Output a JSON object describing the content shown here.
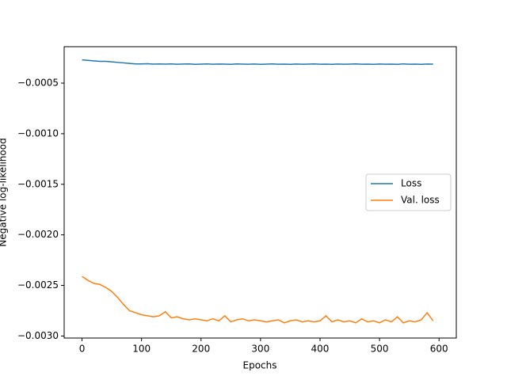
{
  "chart_data": {
    "type": "line",
    "xlabel": "Epochs",
    "ylabel": "Negative log-likelihood",
    "x": [
      0,
      10,
      20,
      30,
      40,
      50,
      60,
      70,
      80,
      90,
      100,
      110,
      120,
      130,
      140,
      150,
      160,
      170,
      180,
      190,
      200,
      210,
      220,
      230,
      240,
      250,
      260,
      270,
      280,
      290,
      300,
      310,
      320,
      330,
      340,
      350,
      360,
      370,
      380,
      390,
      400,
      410,
      420,
      430,
      440,
      450,
      460,
      470,
      480,
      490,
      500,
      510,
      520,
      530,
      540,
      550,
      560,
      570,
      580,
      590
    ],
    "series": [
      {
        "name": "Loss",
        "color": "#1f77b4",
        "values": [
          -0.00027,
          -0.000275,
          -0.00028,
          -0.000285,
          -0.000285,
          -0.00029,
          -0.000295,
          -0.0003,
          -0.000305,
          -0.00031,
          -0.00031,
          -0.000308,
          -0.000312,
          -0.00031,
          -0.000312,
          -0.00031,
          -0.000313,
          -0.000311,
          -0.00031,
          -0.000314,
          -0.000312,
          -0.00031,
          -0.000313,
          -0.000311,
          -0.000312,
          -0.000314,
          -0.00031,
          -0.000312,
          -0.000313,
          -0.000311,
          -0.000314,
          -0.000312,
          -0.00031,
          -0.000313,
          -0.000312,
          -0.000314,
          -0.000311,
          -0.000313,
          -0.000312,
          -0.00031,
          -0.000313,
          -0.000312,
          -0.000314,
          -0.000311,
          -0.000313,
          -0.000312,
          -0.00031,
          -0.000313,
          -0.000312,
          -0.000314,
          -0.000311,
          -0.000313,
          -0.000312,
          -0.000314,
          -0.00031,
          -0.000313,
          -0.000312,
          -0.000314,
          -0.000311,
          -0.000312
        ]
      },
      {
        "name": "Val. loss",
        "color": "#ff7f0e",
        "values": [
          -0.00241,
          -0.00245,
          -0.00248,
          -0.00249,
          -0.00252,
          -0.00256,
          -0.00262,
          -0.00269,
          -0.00275,
          -0.00277,
          -0.00279,
          -0.0028,
          -0.00281,
          -0.0028,
          -0.00276,
          -0.00282,
          -0.00281,
          -0.00283,
          -0.00284,
          -0.00283,
          -0.00284,
          -0.00285,
          -0.00283,
          -0.00285,
          -0.0028,
          -0.00286,
          -0.00284,
          -0.00283,
          -0.00285,
          -0.00284,
          -0.00285,
          -0.00286,
          -0.00285,
          -0.00284,
          -0.00287,
          -0.00285,
          -0.00284,
          -0.00286,
          -0.00285,
          -0.00286,
          -0.00285,
          -0.0028,
          -0.00286,
          -0.00284,
          -0.00286,
          -0.00285,
          -0.00287,
          -0.00283,
          -0.00286,
          -0.00285,
          -0.00287,
          -0.00284,
          -0.00286,
          -0.00281,
          -0.00287,
          -0.00285,
          -0.00286,
          -0.00284,
          -0.00277,
          -0.00285
        ]
      }
    ],
    "xlim": [
      -30,
      629
    ],
    "ylim": [
      -0.00302,
      -0.00014
    ],
    "xticks": [
      0,
      100,
      200,
      300,
      400,
      500,
      600
    ],
    "yticks": [
      {
        "value": -0.003,
        "label": "−0.0030"
      },
      {
        "value": -0.0025,
        "label": "−0.0025"
      },
      {
        "value": -0.002,
        "label": "−0.0020"
      },
      {
        "value": -0.0015,
        "label": "−0.0015"
      },
      {
        "value": -0.001,
        "label": "−0.0010"
      },
      {
        "value": -0.0005,
        "label": "−0.0005"
      }
    ],
    "legend": "center right"
  }
}
